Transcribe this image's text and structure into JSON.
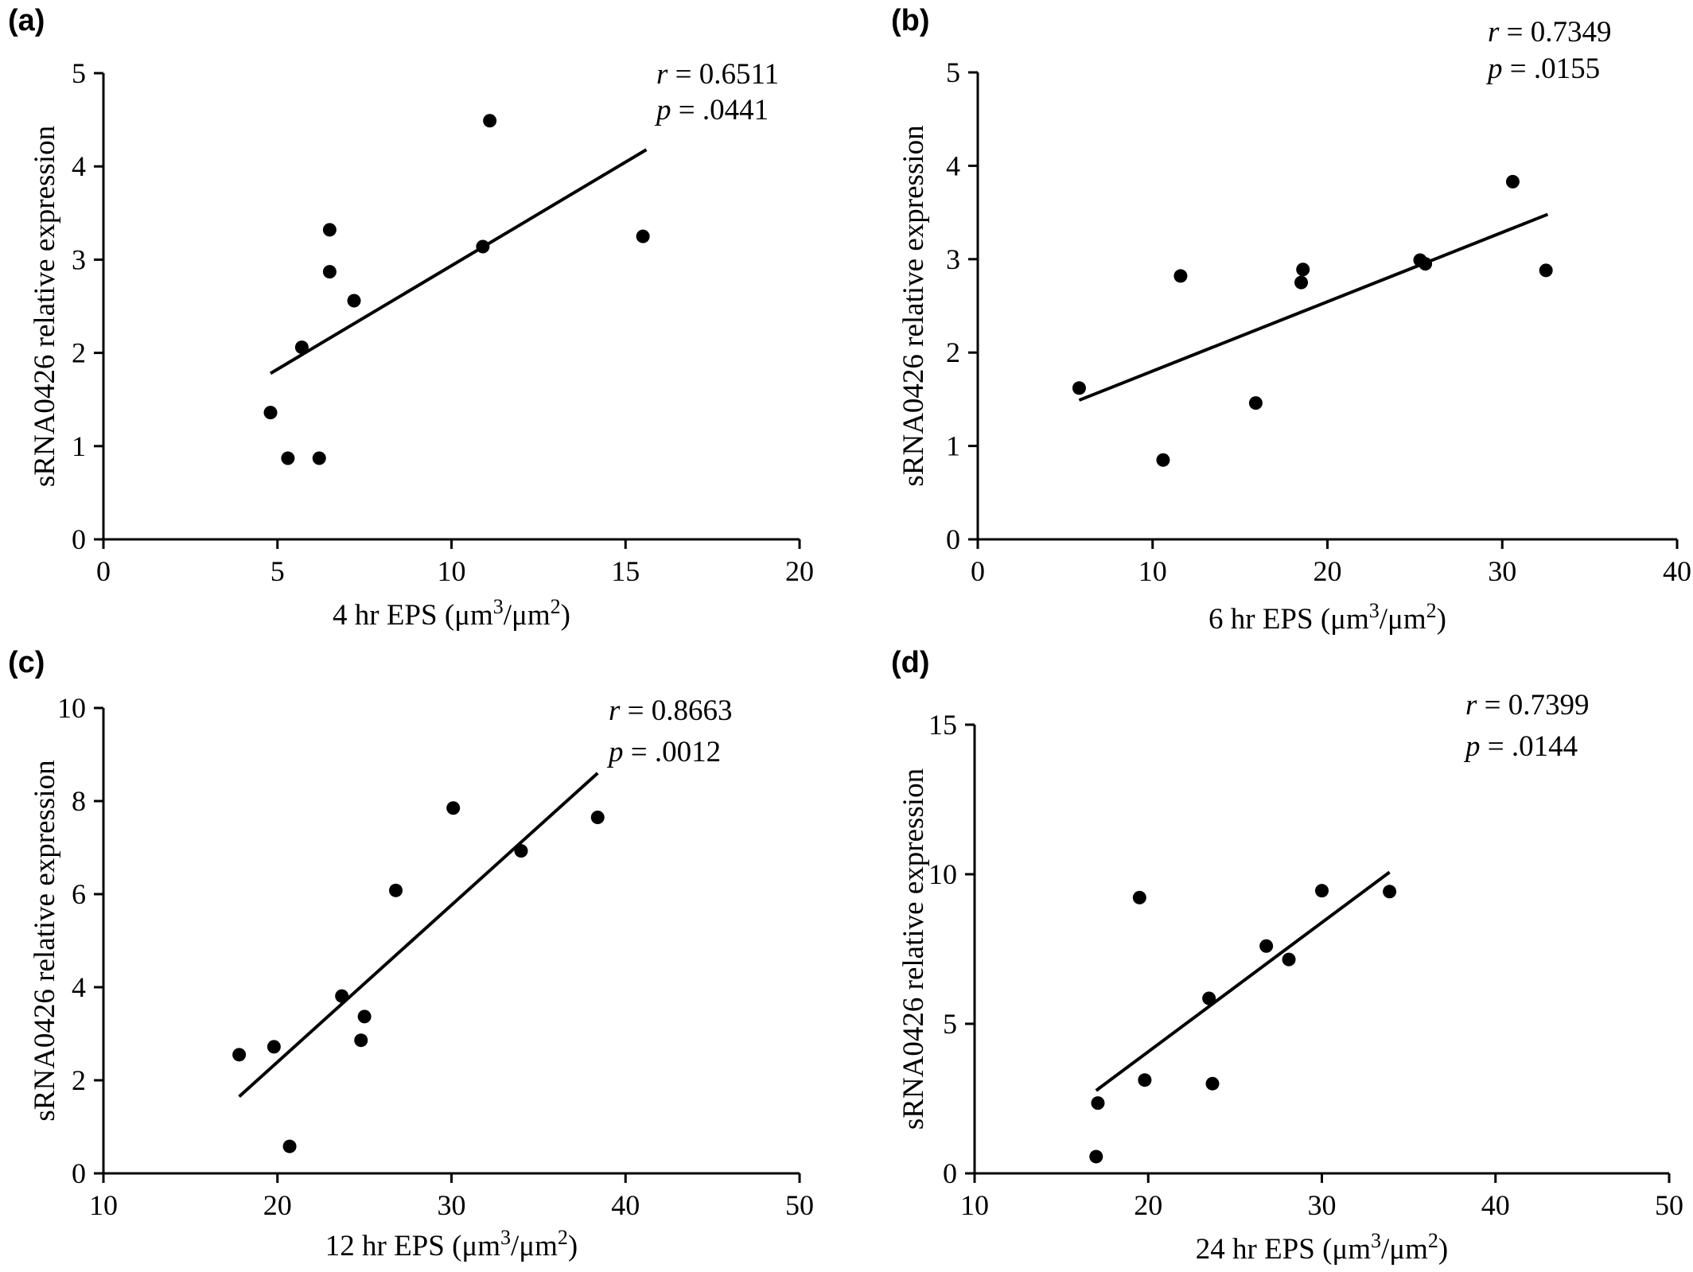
{
  "chart_data": [
    {
      "type": "scatter",
      "panel": "(a)",
      "xlabel": "4 hr EPS (μm3/μm2)",
      "xlabel_parts": {
        "prefix": "4 hr EPS (μm",
        "sup1": "3",
        "mid": "/μm",
        "sup2": "2",
        "suffix": ")"
      },
      "ylabel": "sRNA0426 relative expression",
      "xlim": [
        0,
        20
      ],
      "ylim": [
        0,
        5
      ],
      "xticks": [
        0,
        5,
        10,
        15,
        20
      ],
      "yticks": [
        0,
        1,
        2,
        3,
        4,
        5
      ],
      "points": [
        {
          "x": 4.8,
          "y": 1.36
        },
        {
          "x": 5.3,
          "y": 0.87
        },
        {
          "x": 5.7,
          "y": 2.06
        },
        {
          "x": 6.2,
          "y": 0.87
        },
        {
          "x": 6.5,
          "y": 3.32
        },
        {
          "x": 6.5,
          "y": 2.87
        },
        {
          "x": 7.2,
          "y": 2.56
        },
        {
          "x": 10.9,
          "y": 3.14
        },
        {
          "x": 11.1,
          "y": 4.49
        },
        {
          "x": 15.5,
          "y": 3.25
        }
      ],
      "fit": {
        "x": [
          4.8,
          15.6
        ],
        "y": [
          1.78,
          4.18
        ]
      },
      "r_label": "r",
      "r_value": " = 0.6511",
      "p_label": "p",
      "p_value": " = .0441"
    },
    {
      "type": "scatter",
      "panel": "(b)",
      "xlabel": "6 hr EPS (μm3/μm2)",
      "xlabel_parts": {
        "prefix": "6 hr EPS (μm",
        "sup1": "3",
        "mid": "/μm",
        "sup2": "2",
        "suffix": ")"
      },
      "ylabel": "sRNA0426 relative expression",
      "xlim": [
        0,
        40
      ],
      "ylim": [
        0,
        5
      ],
      "xticks": [
        0,
        10,
        20,
        30,
        40
      ],
      "yticks": [
        0,
        1,
        2,
        3,
        4,
        5
      ],
      "points": [
        {
          "x": 5.8,
          "y": 1.62
        },
        {
          "x": 10.6,
          "y": 0.85
        },
        {
          "x": 11.6,
          "y": 2.82
        },
        {
          "x": 15.9,
          "y": 1.46
        },
        {
          "x": 18.5,
          "y": 2.75
        },
        {
          "x": 18.6,
          "y": 2.89
        },
        {
          "x": 25.3,
          "y": 2.99
        },
        {
          "x": 25.6,
          "y": 2.95
        },
        {
          "x": 30.6,
          "y": 3.83
        },
        {
          "x": 32.5,
          "y": 2.88
        }
      ],
      "fit": {
        "x": [
          5.8,
          32.6
        ],
        "y": [
          1.49,
          3.48
        ]
      },
      "r_label": "r",
      "r_value": " = 0.7349",
      "p_label": "p",
      "p_value": " = .0155"
    },
    {
      "type": "scatter",
      "panel": "(c)",
      "xlabel": "12 hr EPS (μm3/μm2)",
      "xlabel_parts": {
        "prefix": "12 hr EPS (μm",
        "sup1": "3",
        "mid": "/μm",
        "sup2": "2",
        "suffix": ")"
      },
      "ylabel": "sRNA0426 relative expression",
      "xlim": [
        10,
        50
      ],
      "ylim": [
        0,
        10
      ],
      "xticks": [
        10,
        20,
        30,
        40,
        50
      ],
      "yticks": [
        0,
        2,
        4,
        6,
        8,
        10
      ],
      "points": [
        {
          "x": 17.8,
          "y": 2.55
        },
        {
          "x": 19.8,
          "y": 2.72
        },
        {
          "x": 20.7,
          "y": 0.58
        },
        {
          "x": 23.7,
          "y": 3.81
        },
        {
          "x": 24.8,
          "y": 2.86
        },
        {
          "x": 25.0,
          "y": 3.37
        },
        {
          "x": 26.8,
          "y": 6.08
        },
        {
          "x": 30.1,
          "y": 7.85
        },
        {
          "x": 34.0,
          "y": 6.93
        },
        {
          "x": 38.4,
          "y": 7.65
        }
      ],
      "fit": {
        "x": [
          17.8,
          38.4
        ],
        "y": [
          1.65,
          8.6
        ]
      },
      "r_label": "r",
      "r_value": " = 0.8663",
      "p_label": "p",
      "p_value": " = .0012"
    },
    {
      "type": "scatter",
      "panel": "(d)",
      "xlabel": "24 hr EPS (μm3/μm2)",
      "xlabel_parts": {
        "prefix": "24 hr EPS (μm",
        "sup1": "3",
        "mid": "/μm",
        "sup2": "2",
        "suffix": ")"
      },
      "ylabel": "sRNA0426 relative expression",
      "xlim": [
        10,
        50
      ],
      "ylim": [
        0,
        15
      ],
      "xticks": [
        10,
        20,
        30,
        40,
        50
      ],
      "yticks": [
        0,
        5,
        10,
        15
      ],
      "points": [
        {
          "x": 17.0,
          "y": 0.56
        },
        {
          "x": 17.1,
          "y": 2.35
        },
        {
          "x": 19.5,
          "y": 9.22
        },
        {
          "x": 19.8,
          "y": 3.12
        },
        {
          "x": 23.5,
          "y": 5.85
        },
        {
          "x": 23.7,
          "y": 3.0
        },
        {
          "x": 26.8,
          "y": 7.6
        },
        {
          "x": 28.1,
          "y": 7.15
        },
        {
          "x": 30.0,
          "y": 9.45
        },
        {
          "x": 33.9,
          "y": 9.42
        }
      ],
      "fit": {
        "x": [
          17.0,
          33.9
        ],
        "y": [
          2.77,
          10.07
        ]
      },
      "r_label": "r",
      "r_value": " = 0.7399",
      "p_label": "p",
      "p_value": " = .0144"
    }
  ]
}
